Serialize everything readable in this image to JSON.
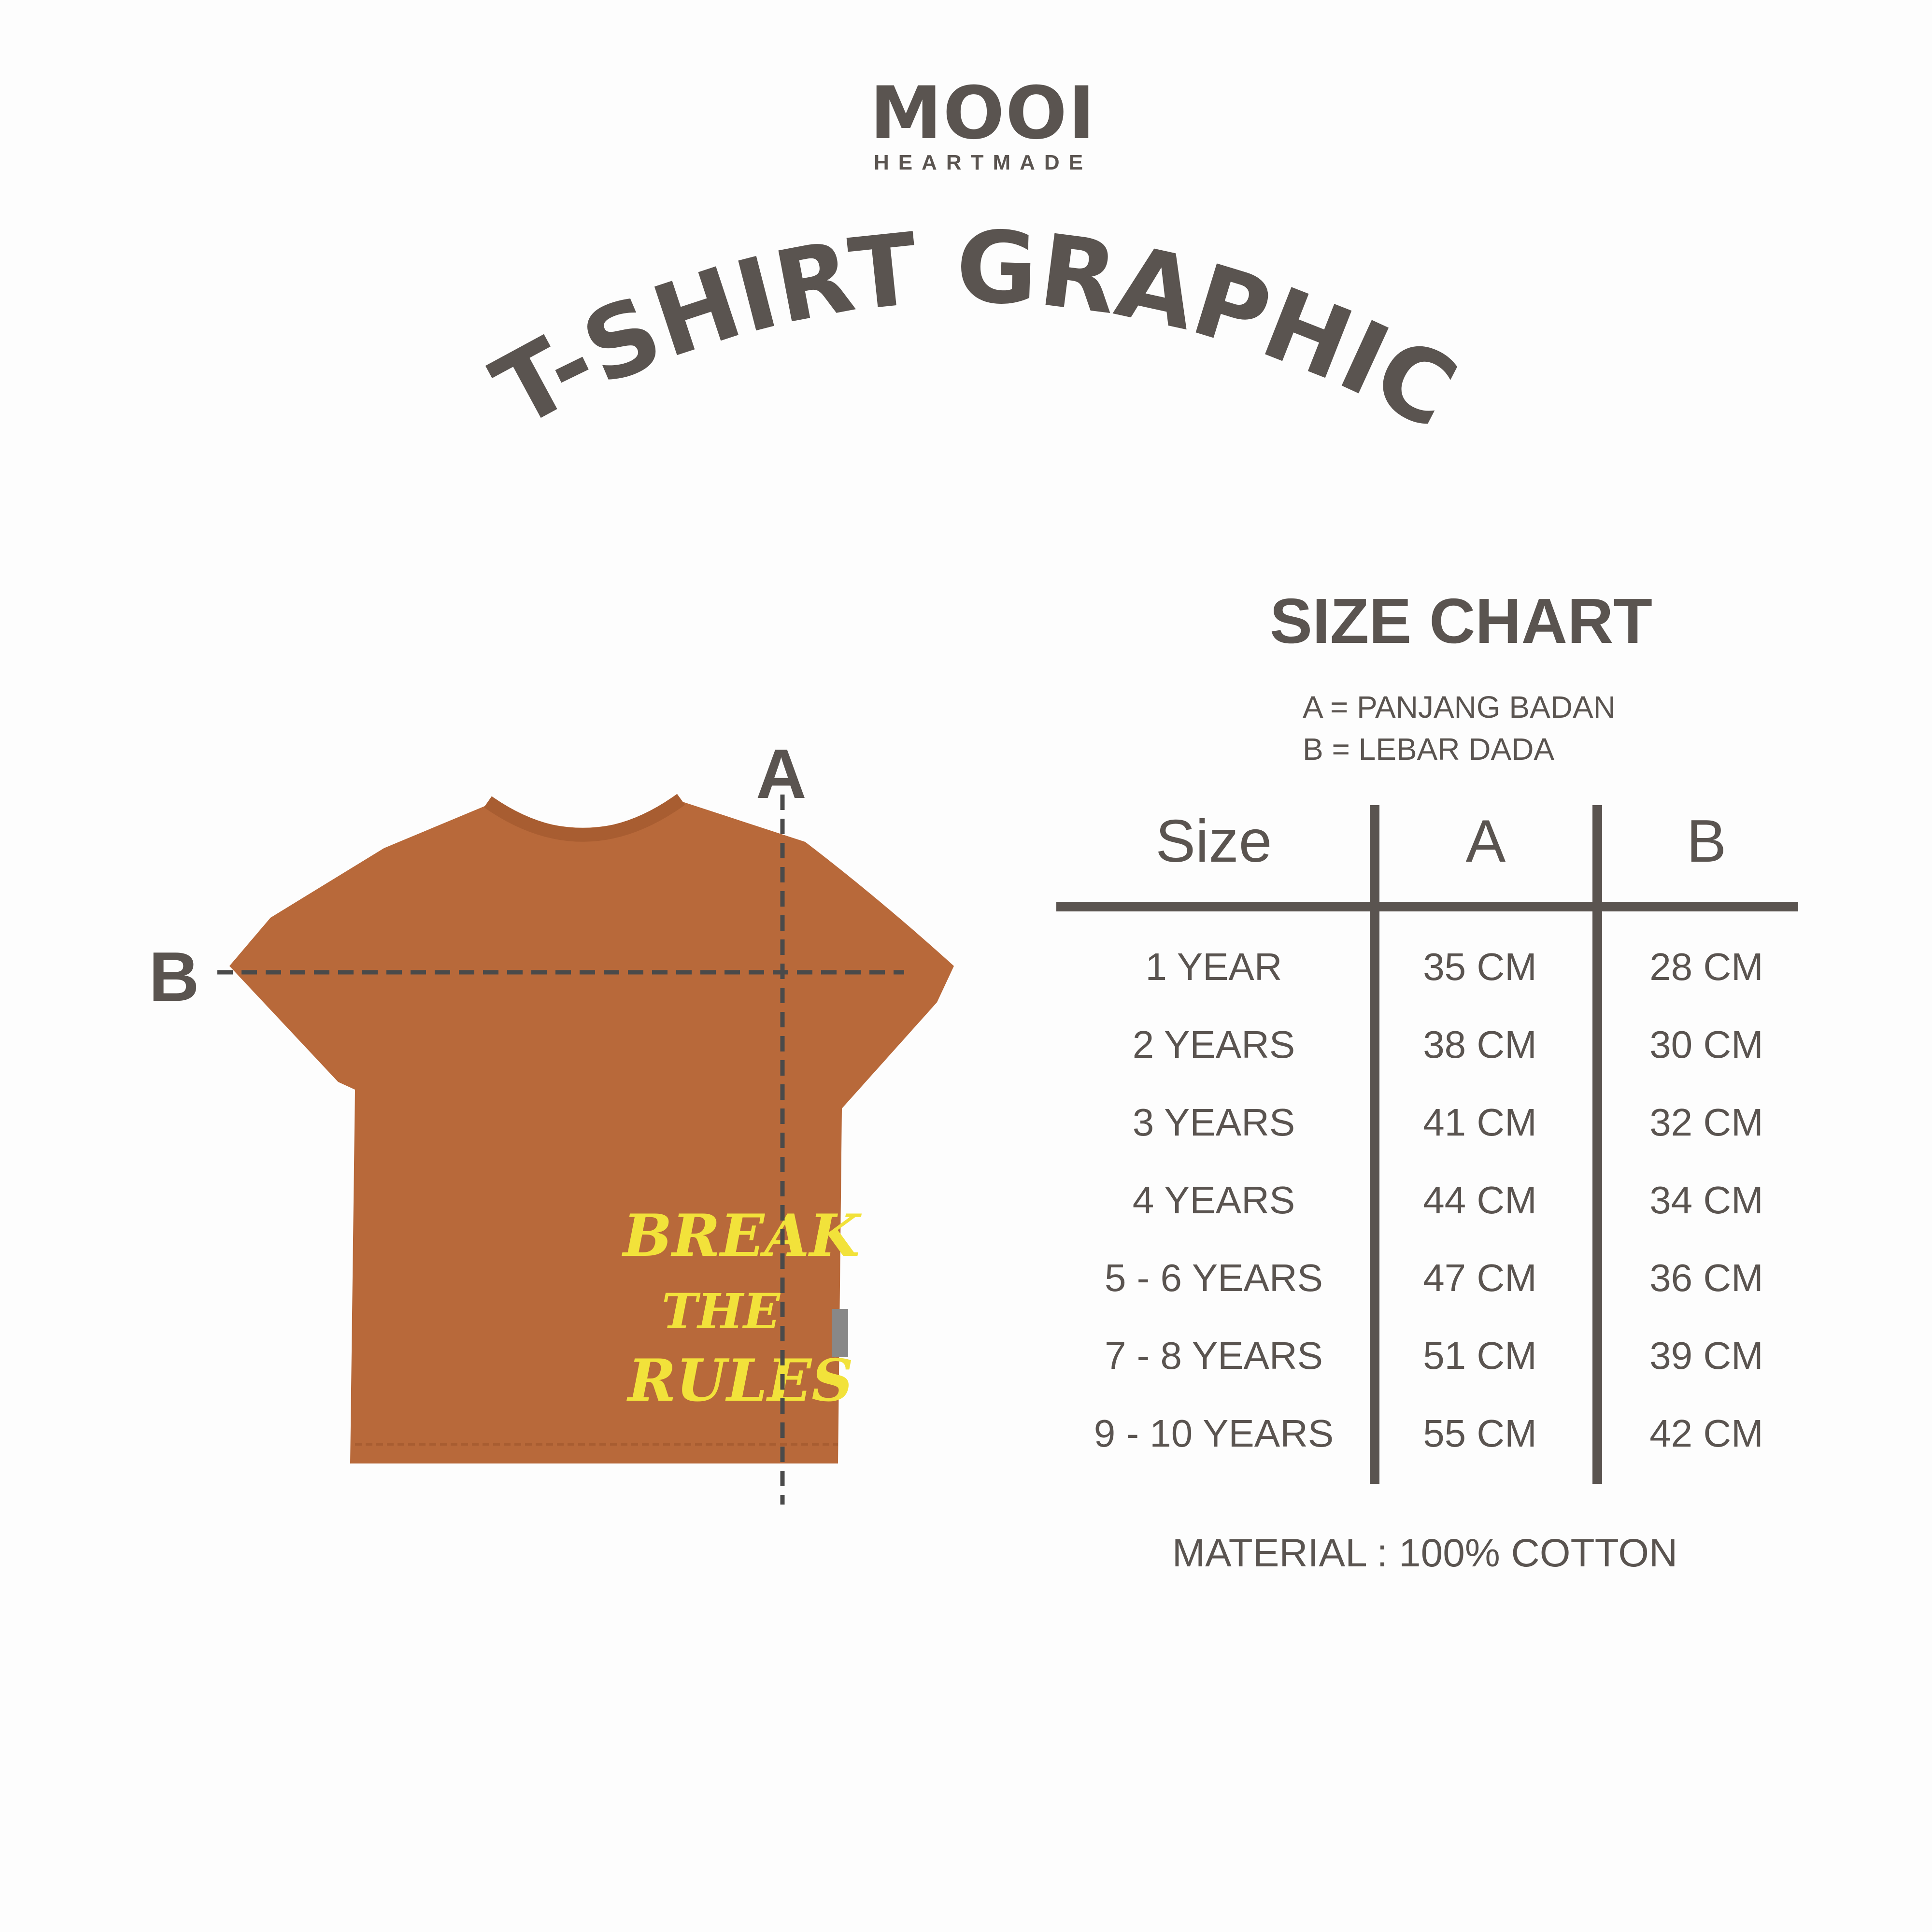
{
  "brand": {
    "name": "MOOI",
    "tagline": "HEARTMADE"
  },
  "product_title": "T-SHIRT GRAPHIC",
  "size_chart": {
    "title": "SIZE CHART",
    "legend": [
      "A = PANJANG BADAN",
      "B = LEBAR DADA"
    ],
    "headers": [
      "Size",
      "A",
      "B"
    ],
    "rows": [
      [
        "1 YEAR",
        "35 CM",
        "28 CM"
      ],
      [
        "2 YEARS",
        "38 CM",
        "30 CM"
      ],
      [
        "3 YEARS",
        "41 CM",
        "32 CM"
      ],
      [
        "4 YEARS",
        "44 CM",
        "34 CM"
      ],
      [
        "5 - 6 YEARS",
        "47 CM",
        "36 CM"
      ],
      [
        "7 - 8 YEARS",
        "51 CM",
        "39 CM"
      ],
      [
        "9 - 10 YEARS",
        "55 CM",
        "42 CM"
      ]
    ],
    "material": "MATERIAL : 100% COTTON"
  },
  "diagram": {
    "label_a": "A",
    "label_b": "B",
    "graphic_text": [
      "BREAK",
      "THE",
      "RULES"
    ]
  },
  "colors": {
    "text": "#5a5450",
    "shirt": "#b8693a",
    "graphic": "#f2e23a",
    "background": "#fdfdfd"
  }
}
